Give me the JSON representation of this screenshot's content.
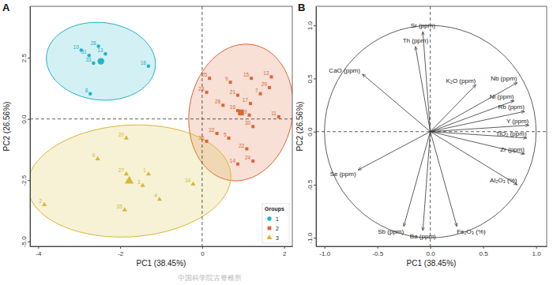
{
  "chart_data": [
    {
      "type": "scatter",
      "panel": "A",
      "x_label": "PC1 (38.45%)",
      "y_label": "PC2 (26.56%)",
      "xlim": [
        -4.2,
        2.2
      ],
      "xticks": [
        -4,
        -2,
        0,
        2
      ],
      "ylim": [
        -5.2,
        4.6
      ],
      "yticks": [
        {
          "value": -5,
          "label": "-5.0"
        },
        {
          "value": -2.5,
          "label": "-2.5"
        },
        {
          "value": 0,
          "label": "0.0"
        },
        {
          "value": 2.5,
          "label": "2.5"
        }
      ],
      "legend": "bottom-right",
      "legend_title": "Groups",
      "series": [
        {
          "name": "1",
          "color": "#22b3c6",
          "marker": "circle",
          "labels": [
            "10",
            "28",
            "31",
            "13",
            "33",
            "18",
            "8"
          ],
          "x": [
            -2.95,
            -2.53,
            -2.76,
            -2.36,
            -2.65,
            -1.31,
            -2.73
          ],
          "values": [
            2.81,
            2.97,
            2.59,
            2.66,
            2.28,
            2.16,
            1.03
          ]
        },
        {
          "name": "2",
          "color": "#dd6633",
          "marker": "square",
          "labels": [
            "25",
            "9",
            "15",
            "12",
            "29",
            "23",
            "21",
            "7",
            "26",
            "17",
            "16",
            "19",
            "11",
            "30",
            "32",
            "5",
            "36",
            "22",
            "24",
            "14"
          ],
          "x": [
            0.18,
            0.69,
            1.2,
            1.69,
            1.64,
            0.11,
            0.87,
            1.42,
            0.51,
            1.18,
            0.87,
            1.15,
            1.87,
            1.24,
            0.36,
            0.65,
            0.11,
            1.09,
            1.24,
            0.87
          ],
          "values": [
            1.66,
            1.5,
            1.66,
            1.72,
            1.28,
            1.09,
            0.97,
            1.03,
            0.56,
            0.63,
            0.34,
            0.16,
            0.09,
            -0.31,
            -0.59,
            -0.78,
            -0.91,
            -1.22,
            -1.72,
            -1.84
          ]
        },
        {
          "name": "3",
          "color": "#d8b833",
          "marker": "triangle",
          "labels": [
            "20",
            "6",
            "27",
            "1",
            "3",
            "34",
            "4",
            "2",
            "35"
          ],
          "x": [
            -1.85,
            -2.55,
            -1.85,
            -1.31,
            -1.45,
            -0.22,
            -1.04,
            -3.85,
            -1.89
          ],
          "values": [
            -0.78,
            -1.63,
            -2.25,
            -2.25,
            -2.72,
            -2.66,
            -3.28,
            -3.5,
            -3.72
          ]
        }
      ]
    },
    {
      "type": "biplot",
      "panel": "B",
      "x_label": "PC1 (38.45%)",
      "y_label": "PC2 (26.56%)",
      "xlim": [
        -1.08,
        1.1
      ],
      "xticks": [
        {
          "value": -1,
          "label": "-1.0"
        },
        -0.5,
        {
          "value": 0,
          "label": "0.0"
        },
        0.5,
        {
          "value": 1,
          "label": "1.0"
        }
      ],
      "ylim": [
        -1.08,
        1.18
      ],
      "yticks": [
        {
          "value": -1,
          "label": "-1.0"
        },
        -0.5,
        {
          "value": 0,
          "label": "0.0"
        },
        0.5,
        {
          "value": 1,
          "label": "1.0"
        }
      ],
      "color": "#333333",
      "labels": [
        "Sr (ppm)",
        "Th (ppm)",
        "CaO (ppm)",
        "K₂O (ppm)",
        "Nb (ppm)",
        "Ni (ppm)",
        "Rb (ppm)",
        "Y (ppm)",
        "TiO₂ (ppm)",
        "Zr (ppm)",
        "Al₂O₃ (%)",
        "Fe₂O₃ (%)",
        "Ba (ppm)",
        "Sb (ppm)",
        "Se (ppm)"
      ],
      "x": [
        -0.07,
        -0.14,
        -0.64,
        0.43,
        0.82,
        0.79,
        0.89,
        0.93,
        0.91,
        0.89,
        0.82,
        0.25,
        -0.07,
        -0.25,
        -0.68
      ],
      "values": [
        0.94,
        0.8,
        0.54,
        0.44,
        0.46,
        0.29,
        0.19,
        0.06,
        -0.06,
        -0.21,
        -0.5,
        -0.89,
        -0.93,
        -0.89,
        -0.36
      ]
    }
  ],
  "footer": "中国科学院古脊椎所"
}
